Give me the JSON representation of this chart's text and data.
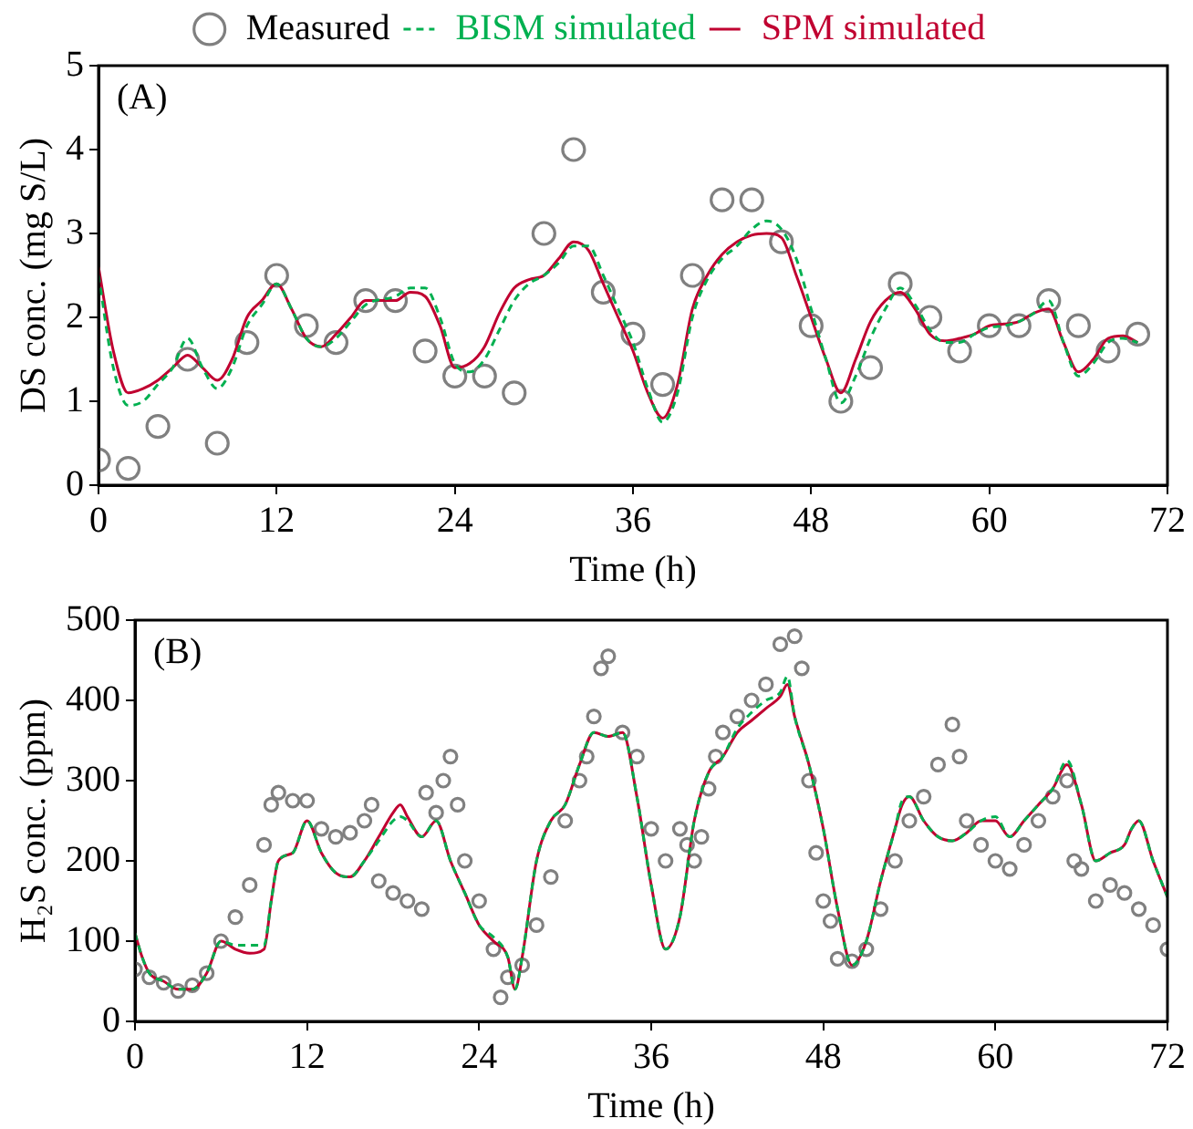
{
  "chart_data": [
    {
      "type": "line",
      "xlabel": "Time (h)",
      "ylabel": "DS conc. (mg S/L)",
      "annotations": [
        "(A)"
      ],
      "xlim": [
        0,
        72
      ],
      "xticks": [
        0,
        12,
        24,
        36,
        48,
        60,
        72
      ],
      "ylim": [
        0,
        5
      ],
      "yticks": [
        0,
        1,
        2,
        3,
        4,
        5
      ],
      "grid": false,
      "legend": "top",
      "series": [
        {
          "name": "Measured",
          "type": "scatter",
          "marker": "circle",
          "color": "#808080",
          "x": [
            0,
            2,
            4,
            6,
            8,
            10,
            12,
            14,
            16,
            18,
            20,
            22,
            24,
            26,
            28,
            30,
            32,
            34,
            36,
            38,
            40,
            42,
            44,
            46,
            48,
            50,
            52,
            54,
            56,
            58,
            60,
            62,
            64,
            66,
            68,
            70
          ],
          "values": [
            0.3,
            0.2,
            0.7,
            1.5,
            0.5,
            1.7,
            2.5,
            1.9,
            1.7,
            2.2,
            2.2,
            1.6,
            1.3,
            1.3,
            1.1,
            3.0,
            4.0,
            2.3,
            1.8,
            1.2,
            2.5,
            3.4,
            3.4,
            2.9,
            1.9,
            1.0,
            1.4,
            2.4,
            2.0,
            1.6,
            1.9,
            1.9,
            2.2,
            1.9,
            1.6,
            1.8
          ]
        },
        {
          "name": "BISM simulated",
          "line_style": "dashed",
          "color": "#00b050",
          "x": [
            0,
            1,
            2,
            3,
            4,
            5,
            6,
            7,
            8,
            9,
            10,
            11,
            12,
            13,
            14,
            15,
            16,
            17,
            18,
            20,
            21,
            22,
            23,
            24,
            25,
            26,
            27,
            28,
            29,
            30,
            31,
            32,
            33,
            34,
            35,
            36,
            37,
            38,
            39,
            40,
            41,
            42,
            43,
            44,
            45,
            46,
            47,
            48,
            49,
            50,
            51,
            52,
            53,
            54,
            55,
            56,
            57,
            58,
            59,
            60,
            61,
            62,
            63,
            64,
            65,
            66,
            67,
            68,
            69,
            70
          ],
          "values": [
            2.5,
            1.4,
            0.95,
            1.0,
            1.2,
            1.4,
            1.75,
            1.4,
            1.15,
            1.4,
            1.9,
            2.15,
            2.4,
            2.1,
            1.75,
            1.65,
            1.75,
            1.95,
            2.15,
            2.25,
            2.35,
            2.35,
            2.0,
            1.45,
            1.35,
            1.5,
            1.85,
            2.2,
            2.4,
            2.5,
            2.65,
            2.85,
            2.85,
            2.5,
            2.1,
            1.7,
            1.15,
            0.75,
            1.1,
            2.0,
            2.45,
            2.7,
            2.85,
            3.05,
            3.15,
            3.05,
            2.7,
            2.1,
            1.5,
            0.98,
            1.3,
            1.75,
            2.1,
            2.35,
            2.15,
            1.85,
            1.7,
            1.7,
            1.8,
            1.88,
            1.9,
            1.95,
            2.05,
            2.2,
            1.7,
            1.3,
            1.45,
            1.7,
            1.75,
            1.7
          ]
        },
        {
          "name": "SPM simulated",
          "line_style": "solid",
          "color": "#c00030",
          "x": [
            0,
            1,
            2,
            3,
            4,
            5,
            6,
            7,
            8,
            9,
            10,
            11,
            12,
            13,
            14,
            15,
            16,
            17,
            18,
            20,
            21,
            22,
            23,
            24,
            25,
            26,
            27,
            28,
            29,
            30,
            31,
            32,
            33,
            34,
            35,
            36,
            37,
            38,
            39,
            40,
            41,
            42,
            43,
            44,
            45,
            46,
            47,
            48,
            49,
            50,
            51,
            52,
            53,
            54,
            55,
            56,
            57,
            58,
            59,
            60,
            61,
            62,
            63,
            64,
            65,
            66,
            67,
            68,
            69,
            70
          ],
          "values": [
            2.6,
            1.6,
            1.1,
            1.15,
            1.25,
            1.4,
            1.55,
            1.4,
            1.25,
            1.5,
            2.0,
            2.2,
            2.4,
            2.1,
            1.75,
            1.65,
            1.8,
            2.0,
            2.2,
            2.2,
            2.3,
            2.25,
            1.9,
            1.4,
            1.45,
            1.65,
            2.05,
            2.35,
            2.45,
            2.5,
            2.7,
            2.9,
            2.8,
            2.4,
            2.0,
            1.6,
            1.1,
            0.8,
            1.2,
            2.1,
            2.5,
            2.75,
            2.9,
            2.98,
            3.0,
            2.95,
            2.5,
            2.0,
            1.5,
            1.1,
            1.5,
            1.95,
            2.2,
            2.3,
            2.1,
            1.8,
            1.72,
            1.75,
            1.8,
            1.9,
            1.92,
            1.95,
            2.05,
            2.1,
            1.7,
            1.35,
            1.5,
            1.75,
            1.78,
            1.7
          ]
        }
      ]
    },
    {
      "type": "line",
      "xlabel": "Time (h)",
      "ylabel": "H₂S conc. (ppm)",
      "annotations": [
        "(B)"
      ],
      "xlim": [
        0,
        72
      ],
      "xticks": [
        0,
        12,
        24,
        36,
        48,
        60,
        72
      ],
      "ylim": [
        0,
        500
      ],
      "yticks": [
        0,
        100,
        200,
        300,
        400,
        500
      ],
      "grid": false,
      "series": [
        {
          "type": "scatter",
          "marker": "circle",
          "color": "#808080",
          "x": [
            0,
            1,
            2,
            3,
            4,
            5,
            6,
            7,
            8,
            9,
            9.5,
            10,
            11,
            12,
            13,
            14,
            15,
            16,
            16.5,
            17,
            18,
            19,
            20,
            20.3,
            21,
            21.5,
            22,
            22.5,
            23,
            24,
            25,
            25.5,
            26,
            27,
            28,
            29,
            30,
            31,
            31.5,
            32,
            32.5,
            33,
            34,
            35,
            36,
            37,
            38,
            38.5,
            39,
            39.5,
            40,
            40.5,
            41,
            42,
            43,
            44,
            45,
            46,
            46.5,
            47,
            47.5,
            48,
            48.5,
            49,
            50,
            51,
            52,
            53,
            54,
            55,
            56,
            57,
            57.5,
            58,
            59,
            60,
            61,
            62,
            63,
            64,
            65,
            65.5,
            66,
            67,
            68,
            69,
            70,
            71,
            72
          ],
          "values": [
            65,
            55,
            48,
            38,
            45,
            60,
            100,
            130,
            170,
            220,
            270,
            285,
            275,
            275,
            240,
            230,
            235,
            250,
            270,
            175,
            160,
            150,
            140,
            285,
            260,
            300,
            330,
            270,
            200,
            150,
            90,
            30,
            55,
            70,
            120,
            180,
            250,
            300,
            330,
            380,
            440,
            455,
            360,
            330,
            240,
            200,
            240,
            220,
            200,
            230,
            290,
            330,
            360,
            380,
            400,
            420,
            470,
            480,
            440,
            300,
            210,
            150,
            125,
            78,
            75,
            90,
            140,
            200,
            250,
            280,
            320,
            370,
            330,
            250,
            220,
            200,
            190,
            220,
            250,
            280,
            300,
            200,
            190,
            150,
            170,
            160,
            140,
            120,
            90
          ]
        },
        {
          "line_style": "dashed",
          "color": "#00b050",
          "x": [
            0,
            0.5,
            1,
            2,
            3,
            4,
            5,
            6,
            7,
            8,
            9,
            9.5,
            10,
            11,
            12,
            13,
            14,
            15,
            16,
            17,
            18,
            18.5,
            19,
            20,
            21,
            22,
            23,
            24,
            25,
            26,
            26.5,
            27,
            28,
            29,
            30,
            31,
            32,
            33,
            34,
            35,
            36,
            37,
            38,
            39,
            40,
            41,
            42,
            43,
            44,
            45,
            45.5,
            46,
            47,
            48,
            49,
            50,
            51,
            52,
            53,
            53.5,
            54,
            55,
            56,
            57,
            58,
            59,
            60,
            61,
            62,
            63,
            64,
            65,
            66,
            67,
            68,
            69,
            69.5,
            70,
            71,
            72
          ],
          "values": [
            110,
            80,
            60,
            50,
            40,
            40,
            60,
            100,
            95,
            95,
            95,
            150,
            200,
            210,
            250,
            210,
            185,
            180,
            200,
            225,
            250,
            255,
            250,
            230,
            250,
            200,
            160,
            120,
            105,
            80,
            40,
            80,
            200,
            250,
            270,
            320,
            360,
            355,
            360,
            280,
            170,
            90,
            130,
            250,
            310,
            330,
            365,
            385,
            400,
            410,
            430,
            380,
            320,
            240,
            140,
            70,
            100,
            175,
            240,
            275,
            280,
            250,
            230,
            225,
            235,
            250,
            255,
            230,
            250,
            270,
            290,
            325,
            270,
            200,
            210,
            220,
            240,
            250,
            200,
            155
          ]
        },
        {
          "line_style": "solid",
          "color": "#c00030",
          "x": [
            0,
            0.5,
            1,
            2,
            3,
            4,
            5,
            6,
            7,
            8,
            9,
            9.5,
            10,
            11,
            12,
            13,
            14,
            15,
            16,
            17,
            18,
            18.5,
            19,
            20,
            21,
            22,
            23,
            24,
            25,
            26,
            26.5,
            27,
            28,
            29,
            30,
            31,
            32,
            33,
            34,
            35,
            36,
            37,
            38,
            39,
            40,
            41,
            42,
            43,
            44,
            45,
            45.5,
            46,
            47,
            48,
            49,
            50,
            51,
            52,
            53,
            53.5,
            54,
            55,
            56,
            57,
            58,
            59,
            60,
            61,
            62,
            63,
            64,
            65,
            66,
            67,
            68,
            69,
            69.5,
            70,
            71,
            72
          ],
          "values": [
            110,
            80,
            60,
            50,
            40,
            40,
            60,
            100,
            90,
            85,
            90,
            150,
            200,
            210,
            250,
            210,
            185,
            180,
            200,
            230,
            260,
            270,
            255,
            230,
            250,
            200,
            160,
            120,
            100,
            80,
            40,
            80,
            200,
            250,
            270,
            320,
            360,
            355,
            360,
            280,
            170,
            90,
            130,
            250,
            310,
            330,
            360,
            375,
            390,
            405,
            420,
            380,
            320,
            240,
            140,
            70,
            100,
            175,
            240,
            270,
            280,
            250,
            230,
            225,
            235,
            250,
            250,
            230,
            250,
            270,
            290,
            320,
            270,
            200,
            210,
            220,
            240,
            250,
            200,
            155
          ]
        }
      ]
    }
  ]
}
